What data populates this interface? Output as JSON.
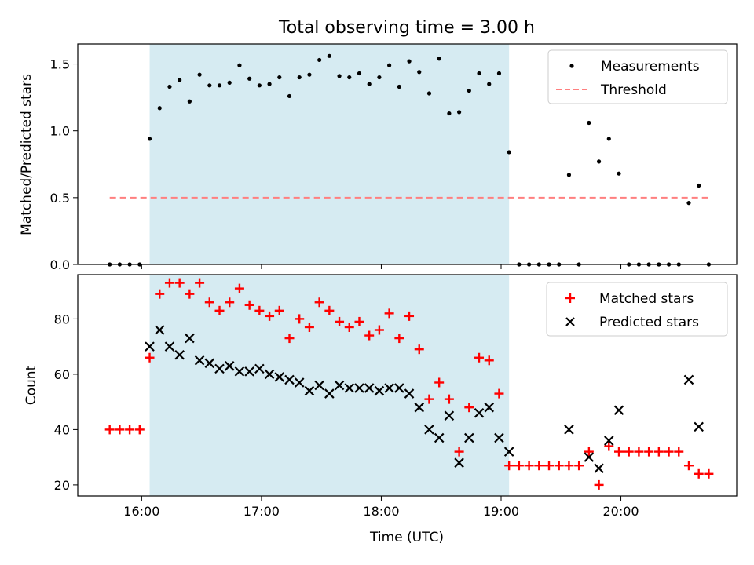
{
  "figure": {
    "title": "Total observing time = 3.00 h",
    "xlabel": "Time (UTC)",
    "x_ticks": [
      "16:00",
      "17:00",
      "18:00",
      "19:00",
      "20:00"
    ],
    "shaded_window": {
      "start": "16:04",
      "end": "19:04",
      "color": "#add8e6"
    }
  },
  "chart_data": [
    {
      "type": "scatter",
      "ylabel": "Matched/Predicted stars",
      "xlim": [
        "15:28",
        "20:58"
      ],
      "ylim": [
        0,
        1.65
      ],
      "y_ticks": [
        "0.0",
        "0.5",
        "1.0",
        "1.5"
      ],
      "legend": {
        "position": "top-right",
        "entries": [
          "Measurements",
          "Threshold"
        ]
      },
      "series": [
        {
          "name": "Measurements",
          "kind": "points",
          "color": "#000000",
          "x": [
            "15:44",
            "15:49",
            "15:54",
            "15:59",
            "16:04",
            "16:09",
            "16:14",
            "16:19",
            "16:24",
            "16:29",
            "16:34",
            "16:39",
            "16:44",
            "16:49",
            "16:54",
            "16:59",
            "17:04",
            "17:09",
            "17:14",
            "17:19",
            "17:24",
            "17:29",
            "17:34",
            "17:39",
            "17:44",
            "17:49",
            "17:54",
            "17:59",
            "18:04",
            "18:09",
            "18:14",
            "18:19",
            "18:24",
            "18:29",
            "18:34",
            "18:39",
            "18:44",
            "18:49",
            "18:54",
            "18:59",
            "19:04",
            "19:09",
            "19:14",
            "19:19",
            "19:24",
            "19:29",
            "19:34",
            "19:39",
            "19:44",
            "19:49",
            "19:54",
            "19:59",
            "20:04",
            "20:09",
            "20:14",
            "20:19",
            "20:24",
            "20:29",
            "20:34",
            "20:39",
            "20:44"
          ],
          "y": [
            0,
            0,
            0,
            0,
            0.94,
            1.17,
            1.33,
            1.38,
            1.22,
            1.42,
            1.34,
            1.34,
            1.36,
            1.49,
            1.39,
            1.34,
            1.35,
            1.4,
            1.26,
            1.4,
            1.42,
            1.53,
            1.56,
            1.41,
            1.4,
            1.43,
            1.35,
            1.4,
            1.49,
            1.33,
            1.52,
            1.44,
            1.28,
            1.54,
            1.13,
            1.14,
            1.3,
            1.43,
            1.35,
            1.43,
            0.84,
            0,
            0,
            0,
            0,
            0,
            0.67,
            0,
            1.06,
            0.77,
            0.94,
            0.68,
            0,
            0,
            0,
            0,
            0,
            0,
            0.46,
            0.59,
            0
          ]
        },
        {
          "name": "Threshold",
          "kind": "dashed-line",
          "color": "#ff7f7f",
          "x": [
            "15:44",
            "20:44"
          ],
          "y": [
            0.5,
            0.5
          ]
        }
      ]
    },
    {
      "type": "scatter",
      "ylabel": "Count",
      "xlim": [
        "15:28",
        "20:58"
      ],
      "ylim": [
        16,
        96
      ],
      "y_ticks": [
        "20",
        "40",
        "60",
        "80"
      ],
      "legend": {
        "position": "top-right",
        "entries": [
          "Matched stars",
          "Predicted stars"
        ]
      },
      "series": [
        {
          "name": "Matched stars",
          "marker": "+",
          "color": "#ff0000",
          "x": [
            "15:44",
            "15:49",
            "15:54",
            "15:59",
            "16:04",
            "16:09",
            "16:14",
            "16:19",
            "16:24",
            "16:29",
            "16:34",
            "16:39",
            "16:44",
            "16:49",
            "16:54",
            "16:59",
            "17:04",
            "17:09",
            "17:14",
            "17:19",
            "17:24",
            "17:29",
            "17:34",
            "17:39",
            "17:44",
            "17:49",
            "17:54",
            "17:59",
            "18:04",
            "18:09",
            "18:14",
            "18:19",
            "18:24",
            "18:29",
            "18:34",
            "18:39",
            "18:44",
            "18:49",
            "18:54",
            "18:59",
            "19:04",
            "19:09",
            "19:14",
            "19:19",
            "19:24",
            "19:29",
            "19:34",
            "19:39",
            "19:44",
            "19:49",
            "19:54",
            "19:59",
            "20:04",
            "20:09",
            "20:14",
            "20:19",
            "20:24",
            "20:29",
            "20:34",
            "20:39",
            "20:44"
          ],
          "y": [
            40,
            40,
            40,
            40,
            66,
            89,
            93,
            93,
            89,
            93,
            86,
            83,
            86,
            91,
            85,
            83,
            81,
            83,
            73,
            80,
            77,
            86,
            83,
            79,
            77,
            79,
            74,
            76,
            82,
            73,
            81,
            69,
            51,
            57,
            51,
            32,
            48,
            66,
            65,
            53,
            27,
            27,
            27,
            27,
            27,
            27,
            27,
            27,
            32,
            20,
            34,
            32,
            32,
            32,
            32,
            32,
            32,
            32,
            27,
            24,
            24
          ]
        },
        {
          "name": "Predicted stars",
          "marker": "x",
          "color": "#000000",
          "x": [
            "16:04",
            "16:09",
            "16:14",
            "16:19",
            "16:24",
            "16:29",
            "16:34",
            "16:39",
            "16:44",
            "16:49",
            "16:54",
            "16:59",
            "17:04",
            "17:09",
            "17:14",
            "17:19",
            "17:24",
            "17:29",
            "17:34",
            "17:39",
            "17:44",
            "17:49",
            "17:54",
            "17:59",
            "18:04",
            "18:09",
            "18:14",
            "18:19",
            "18:24",
            "18:29",
            "18:34",
            "18:39",
            "18:44",
            "18:49",
            "18:54",
            "18:59",
            "19:04",
            "19:34",
            "19:44",
            "19:49",
            "19:54",
            "19:59",
            "20:34",
            "20:39"
          ],
          "y": [
            70,
            76,
            70,
            67,
            73,
            65,
            64,
            62,
            63,
            61,
            61,
            62,
            60,
            59,
            58,
            57,
            54,
            56,
            53,
            56,
            55,
            55,
            55,
            54,
            55,
            55,
            53,
            48,
            40,
            37,
            45,
            28,
            37,
            46,
            48,
            37,
            32,
            40,
            30,
            26,
            36,
            47,
            58,
            41
          ]
        }
      ]
    }
  ]
}
